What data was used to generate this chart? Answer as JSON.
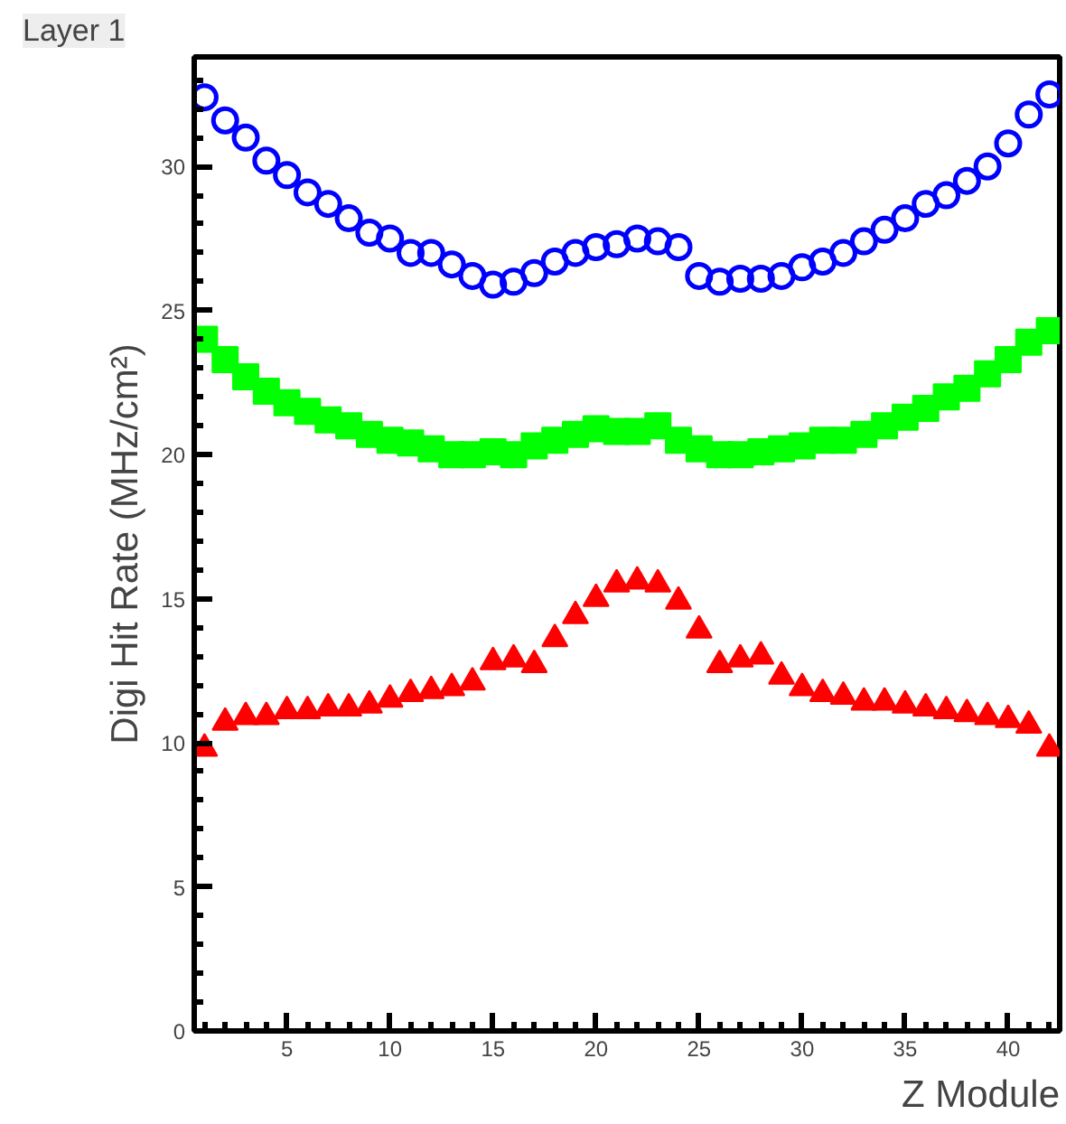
{
  "chart_data": {
    "type": "scatter",
    "title": "Layer 1",
    "xlabel": "Z Module",
    "ylabel": "Digi Hit Rate (MHz/cm²)",
    "x": [
      1,
      2,
      3,
      4,
      5,
      6,
      7,
      8,
      9,
      10,
      11,
      12,
      13,
      14,
      15,
      16,
      17,
      18,
      19,
      20,
      21,
      22,
      23,
      24,
      25,
      26,
      27,
      28,
      29,
      30,
      31,
      32,
      33,
      34,
      35,
      36,
      37,
      38,
      39,
      40,
      41,
      42
    ],
    "series": [
      {
        "color": "#0000ff",
        "marker": "circle",
        "values": [
          32.4,
          31.6,
          31.0,
          30.2,
          29.7,
          29.1,
          28.7,
          28.2,
          27.7,
          27.5,
          27.0,
          27.0,
          26.6,
          26.2,
          25.9,
          26.0,
          26.3,
          26.7,
          27.0,
          27.2,
          27.3,
          27.5,
          27.4,
          27.2,
          26.2,
          26.0,
          26.1,
          26.1,
          26.2,
          26.5,
          26.7,
          27.0,
          27.4,
          27.8,
          28.2,
          28.7,
          29.0,
          29.5,
          30.0,
          30.8,
          31.8,
          32.5
        ]
      },
      {
        "color": "#00ff00",
        "marker": "square",
        "values": [
          24.0,
          23.3,
          22.7,
          22.2,
          21.8,
          21.5,
          21.2,
          21.0,
          20.7,
          20.5,
          20.4,
          20.2,
          20.0,
          20.0,
          20.1,
          20.0,
          20.3,
          20.5,
          20.7,
          20.9,
          20.8,
          20.8,
          21.0,
          20.5,
          20.2,
          20.0,
          20.0,
          20.1,
          20.2,
          20.3,
          20.5,
          20.5,
          20.7,
          21.0,
          21.3,
          21.6,
          22.0,
          22.3,
          22.8,
          23.3,
          23.9,
          24.3
        ]
      },
      {
        "color": "#ff0000",
        "marker": "triangle",
        "values": [
          9.8,
          10.7,
          10.9,
          10.9,
          11.1,
          11.1,
          11.2,
          11.2,
          11.3,
          11.5,
          11.7,
          11.8,
          11.9,
          12.1,
          12.8,
          12.9,
          12.7,
          13.6,
          14.4,
          15.0,
          15.5,
          15.6,
          15.5,
          14.9,
          13.9,
          12.7,
          12.9,
          13.0,
          12.3,
          11.9,
          11.7,
          11.6,
          11.4,
          11.4,
          11.3,
          11.2,
          11.1,
          11.0,
          10.9,
          10.8,
          10.6,
          9.8
        ]
      }
    ],
    "xlim": [
      0.5,
      42.5
    ],
    "ylim": [
      0,
      33.8
    ],
    "xticks": [
      5,
      10,
      15,
      20,
      25,
      30,
      35,
      40
    ],
    "yticks": [
      0,
      5,
      10,
      15,
      20,
      25,
      30
    ],
    "grid": false
  }
}
